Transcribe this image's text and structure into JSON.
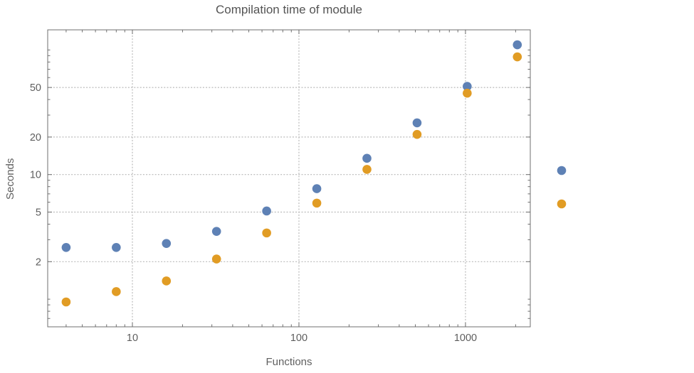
{
  "chart_data": {
    "type": "scatter",
    "title": "Compilation time of module",
    "xlabel": "Functions",
    "ylabel": "Seconds",
    "x_scale": "log",
    "y_scale": "log",
    "grid": true,
    "x_ticks": [
      10,
      100,
      1000
    ],
    "x_tick_labels": [
      "10",
      "100",
      "1000"
    ],
    "y_ticks": [
      2,
      5,
      10,
      20,
      50
    ],
    "y_tick_labels": [
      "2",
      "5",
      "10",
      "20",
      "50"
    ],
    "x_range": [
      3.1,
      2450
    ],
    "y_range": [
      0.6,
      145
    ],
    "series": [
      {
        "name": "blue",
        "color": "#5e81b5",
        "x": [
          4,
          8,
          16,
          32,
          64,
          128,
          256,
          512,
          1024,
          2048
        ],
        "y": [
          2.6,
          2.6,
          2.8,
          3.5,
          5.1,
          7.7,
          13.5,
          26,
          51,
          110
        ]
      },
      {
        "name": "orange",
        "color": "#e19c24",
        "x": [
          4,
          8,
          16,
          32,
          64,
          128,
          256,
          512,
          1024,
          2048
        ],
        "y": [
          0.95,
          1.15,
          1.4,
          2.1,
          3.4,
          5.9,
          11,
          21,
          45,
          88
        ]
      }
    ],
    "legend": {
      "position": "right",
      "markers": [
        {
          "color": "#5e81b5"
        },
        {
          "color": "#e19c24"
        }
      ]
    }
  },
  "style_colors": {
    "frame": "#6f6f6f",
    "gridline": "#b8b8b8",
    "tick_label": "#5e5e5e",
    "title": "#545454",
    "axis_label": "#606060",
    "background": "#ffffff"
  }
}
